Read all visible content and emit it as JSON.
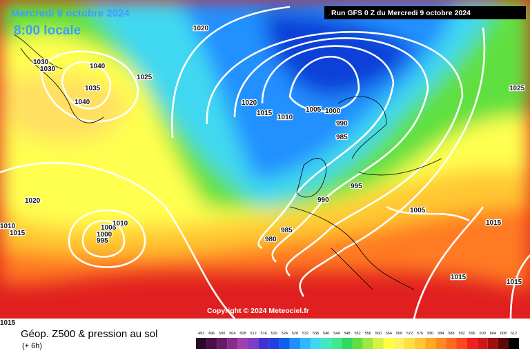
{
  "header": {
    "date": "Mercredi 9 octobre 2024",
    "time": "8:00 locale",
    "run": "Run GFS 0 Z du Mercredi 9 octobre 2024"
  },
  "copyright": "Copyright © 2024 Meteociel.fr",
  "footer": {
    "title": "Géop. Z500 & pression au sol",
    "subtitle": "(+ 6h)"
  },
  "scale": {
    "labels": [
      492,
      496,
      500,
      504,
      508,
      512,
      516,
      520,
      524,
      528,
      532,
      536,
      540,
      544,
      548,
      552,
      556,
      560,
      564,
      568,
      572,
      576,
      580,
      584,
      588,
      592,
      596,
      600,
      604,
      608,
      612
    ],
    "colors": [
      "#2a0a2a",
      "#4a0f4a",
      "#6a1a6a",
      "#8a2a8a",
      "#a040b0",
      "#7a40c8",
      "#4030d0",
      "#2040e0",
      "#1060f0",
      "#2090ff",
      "#30b8ff",
      "#40d8f0",
      "#40e8c0",
      "#40e890",
      "#30d860",
      "#60e040",
      "#a0e840",
      "#d8f040",
      "#ffff40",
      "#fff060",
      "#ffe040",
      "#ffc830",
      "#ffa820",
      "#ff8820",
      "#ff6820",
      "#ff4820",
      "#f02020",
      "#d01818",
      "#a01010",
      "#600808",
      "#000000"
    ]
  },
  "isobar_labels": [
    1020,
    1030,
    1030,
    1040,
    1035,
    1040,
    1025,
    1020,
    1015,
    1010,
    1005,
    1000,
    990,
    985,
    995,
    990,
    985,
    980,
    1020,
    1015,
    1010,
    1005,
    1010,
    1000,
    995,
    1005,
    1015,
    1025,
    1015,
    1015,
    1015
  ]
}
